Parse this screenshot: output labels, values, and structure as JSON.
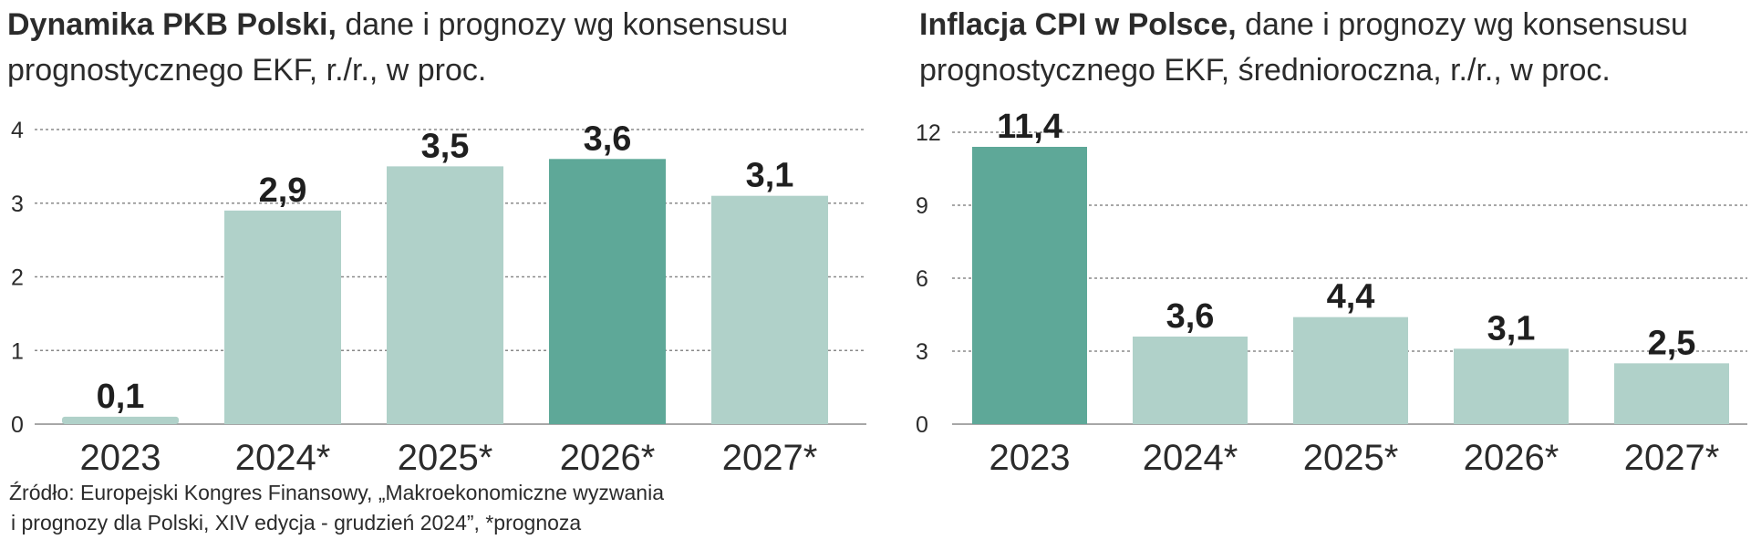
{
  "charts": [
    {
      "title_bold": "Dynamika PKB Polski,",
      "title_rest_line1": " dane i prognozy wg konsensusu",
      "title_line2": "prognostycznego EKF, r./r., w proc."
    },
    {
      "title_bold": "Inflacja CPI w Polsce,",
      "title_rest_line1": " dane i prognozy wg konsensusu",
      "title_line2": "prognostycznego EKF, średnioroczna, r./r., w proc."
    }
  ],
  "source": {
    "line1": "Źródło: Europejski Kongres Finansowy, „Makroekonomiczne wyzwania",
    "line2": "i prognozy dla Polski, XIV edycja - grudzień 2024”, *prognoza"
  },
  "colors": {
    "highlight": "#5ea898",
    "light": "#b0d1c9",
    "grid": "#8a8a8a",
    "text": "#2b2b2b"
  },
  "chart_data": [
    {
      "type": "bar",
      "title": "Dynamika PKB Polski, dane i prognozy wg konsensusu prognostycznego EKF, r./r., w proc.",
      "categories": [
        "2023",
        "2024*",
        "2025*",
        "2026*",
        "2027*"
      ],
      "values": [
        0.1,
        2.9,
        3.5,
        3.6,
        3.1
      ],
      "value_labels": [
        "0,1",
        "2,9",
        "3,5",
        "3,6",
        "3,1"
      ],
      "highlight_index": 3,
      "yticks": [
        0,
        1,
        2,
        3,
        4
      ],
      "ylim": [
        0,
        4
      ],
      "grid": true
    },
    {
      "type": "bar",
      "title": "Inflacja CPI w Polsce, dane i prognozy wg konsensusu prognostycznego EKF, średnioroczna, r./r., w proc.",
      "categories": [
        "2023",
        "2024*",
        "2025*",
        "2026*",
        "2027*"
      ],
      "values": [
        11.4,
        3.6,
        4.4,
        3.1,
        2.5
      ],
      "value_labels": [
        "11,4",
        "3,6",
        "4,4",
        "3,1",
        "2,5"
      ],
      "highlight_index": 0,
      "yticks": [
        0,
        3,
        6,
        9,
        12
      ],
      "ylim": [
        0,
        12
      ],
      "grid": true
    }
  ]
}
